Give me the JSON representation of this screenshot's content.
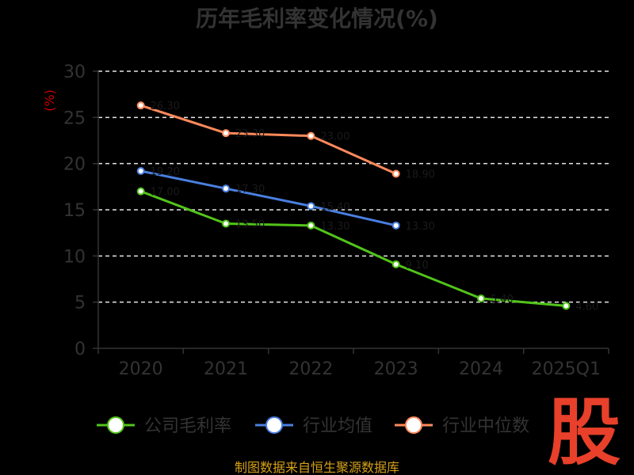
{
  "chart_data": {
    "type": "line",
    "title": "历年毛利率变化情况(%)",
    "ylabel": "(%)",
    "xlabel": "",
    "categories": [
      "2020",
      "2021",
      "2022",
      "2023",
      "2024",
      "2025Q1"
    ],
    "ylim": [
      0,
      30
    ],
    "yticks": [
      0,
      5,
      10,
      15,
      20,
      25,
      30
    ],
    "grid": true,
    "legend_position": "bottom",
    "series": [
      {
        "name": "公司毛利率",
        "color": "#52c41a",
        "values": [
          17.0,
          13.5,
          13.3,
          9.1,
          5.4,
          4.6
        ]
      },
      {
        "name": "行业均值",
        "color": "#4a7fe0",
        "values": [
          19.2,
          17.3,
          15.4,
          13.3,
          null,
          null
        ]
      },
      {
        "name": "行业中位数",
        "color": "#ff8a5c",
        "values": [
          26.3,
          23.3,
          23.0,
          18.9,
          null,
          null
        ]
      }
    ]
  },
  "source_text": "制图数据来自恒生聚源数据库",
  "watermark_text": "股"
}
